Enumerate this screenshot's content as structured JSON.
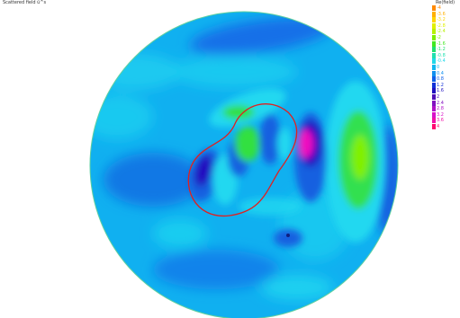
{
  "title": "Scattered field ü^s",
  "legend": {
    "header": "Re(field)",
    "entries": [
      {
        "label": "-4",
        "color": "#ff8a00"
      },
      {
        "label": "-3.6",
        "color": "#ffb000"
      },
      {
        "label": "-3.2",
        "color": "#ffd400"
      },
      {
        "label": "-2.8",
        "color": "#e0f000"
      },
      {
        "label": "-2.4",
        "color": "#b8f000"
      },
      {
        "label": "-2",
        "color": "#80f000"
      },
      {
        "label": "-1.6",
        "color": "#40e820"
      },
      {
        "label": "-1.2",
        "color": "#20e070"
      },
      {
        "label": "-0.8",
        "color": "#20e0b0"
      },
      {
        "label": "-0.4",
        "color": "#20d8e8"
      },
      {
        "label": "0",
        "color": "#10b8f0"
      },
      {
        "label": "0.4",
        "color": "#1090f0"
      },
      {
        "label": "0.8",
        "color": "#1060e8"
      },
      {
        "label": "1.2",
        "color": "#1030d8"
      },
      {
        "label": "1.6",
        "color": "#2010c0"
      },
      {
        "label": "2",
        "color": "#5010b8"
      },
      {
        "label": "2.4",
        "color": "#8010c0"
      },
      {
        "label": "2.8",
        "color": "#b010c8"
      },
      {
        "label": "3.2",
        "color": "#d810c8"
      },
      {
        "label": "3.6",
        "color": "#f010a8"
      },
      {
        "label": "4",
        "color": "#ff0870"
      }
    ]
  },
  "colors": {
    "background_field": "#10b0f0",
    "deep_blue": "#1460e0",
    "cyan": "#20d8f0",
    "green": "#30e040",
    "magenta": "#f010c0",
    "scatterer_outline": "#e02020"
  },
  "icons": {
    "domain": "circular-domain",
    "scatterer": "peanut-shaped-obstacle-outline"
  }
}
